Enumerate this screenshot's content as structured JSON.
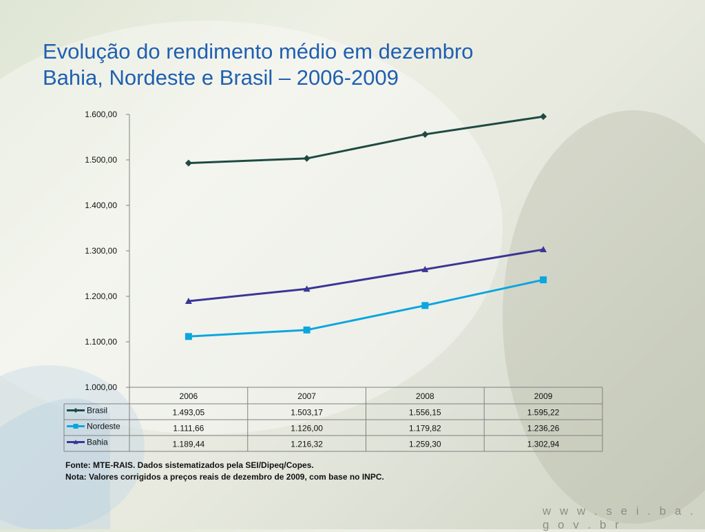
{
  "title": {
    "line1": "Evolução do rendimento médio em dezembro",
    "line2": "Bahia, Nordeste e Brasil – 2006-2009"
  },
  "chart_data": {
    "type": "line",
    "x": [
      "2006",
      "2007",
      "2008",
      "2009"
    ],
    "ylim": [
      1000,
      1600
    ],
    "yticks": [
      "1.000,00",
      "1.100,00",
      "1.200,00",
      "1.300,00",
      "1.400,00",
      "1.500,00",
      "1.600,00"
    ],
    "grid": false,
    "series": [
      {
        "name": "Brasil",
        "values": [
          1493.05,
          1503.17,
          1556.15,
          1595.22
        ],
        "labels": [
          "1.493,05",
          "1.503,17",
          "1.556,15",
          "1.595,22"
        ],
        "color": "#1e4a43",
        "marker": "diamond"
      },
      {
        "name": "Nordeste",
        "values": [
          1111.66,
          1126.0,
          1179.82,
          1236.26
        ],
        "labels": [
          "1.111,66",
          "1.126,00",
          "1.179,82",
          "1.236,26"
        ],
        "color": "#0aa6df",
        "marker": "square"
      },
      {
        "name": "Bahia",
        "values": [
          1189.44,
          1216.32,
          1259.3,
          1302.94
        ],
        "labels": [
          "1.189,44",
          "1.216,32",
          "1.259,30",
          "1.302,94"
        ],
        "color": "#3b3596",
        "marker": "triangle"
      }
    ],
    "legend": "data-table"
  },
  "notes": {
    "source": "Fonte: MTE-RAIS. Dados sistematizados pela SEI/Dipeq/Copes.",
    "note": "Nota: Valores corrigidos a preços reais de dezembro de 2009, com base no INPC."
  },
  "footer": {
    "url": "w w w . s e i . b a . g o v . b r"
  }
}
